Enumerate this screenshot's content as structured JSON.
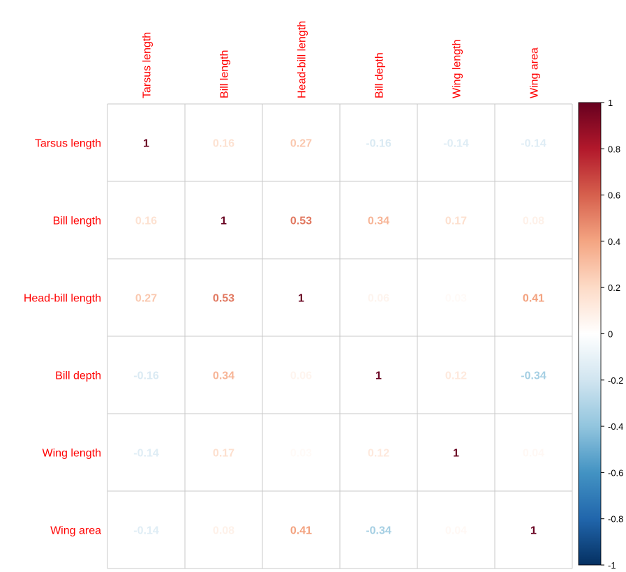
{
  "chart_data": {
    "type": "heatmap",
    "title": "",
    "variables": [
      "Tarsus length",
      "Bill length",
      "Head-bill length",
      "Bill depth",
      "Wing length",
      "Wing area"
    ],
    "matrix": [
      [
        1,
        0.16,
        0.27,
        -0.16,
        -0.14,
        -0.14
      ],
      [
        0.16,
        1,
        0.53,
        0.34,
        0.17,
        0.08
      ],
      [
        0.27,
        0.53,
        1,
        0.06,
        0.03,
        0.41
      ],
      [
        -0.16,
        0.34,
        0.06,
        1,
        0.12,
        -0.34
      ],
      [
        -0.14,
        0.17,
        0.03,
        0.12,
        1,
        0.04
      ],
      [
        -0.14,
        0.08,
        0.41,
        -0.34,
        0.04,
        1
      ]
    ],
    "color_scale": {
      "range": [
        -1,
        1
      ],
      "ticks": [
        "1",
        "0.8",
        "0.6",
        "0.4",
        "0.2",
        "0",
        "-0.2",
        "-0.4",
        "-0.6",
        "-0.8",
        "-1"
      ],
      "tick_values": [
        1,
        0.8,
        0.6,
        0.4,
        0.2,
        0,
        -0.2,
        -0.4,
        -0.6,
        -0.8,
        -1
      ],
      "stops": [
        "#67001F",
        "#B2182B",
        "#D6604D",
        "#F4A582",
        "#FDDBC7",
        "#FFFFFF",
        "#D1E5F0",
        "#92C5DE",
        "#4393C3",
        "#2166AC",
        "#053061"
      ]
    },
    "label_color": "#FF0000",
    "grid_color": "#C8C8C8",
    "legend_position": "right"
  }
}
